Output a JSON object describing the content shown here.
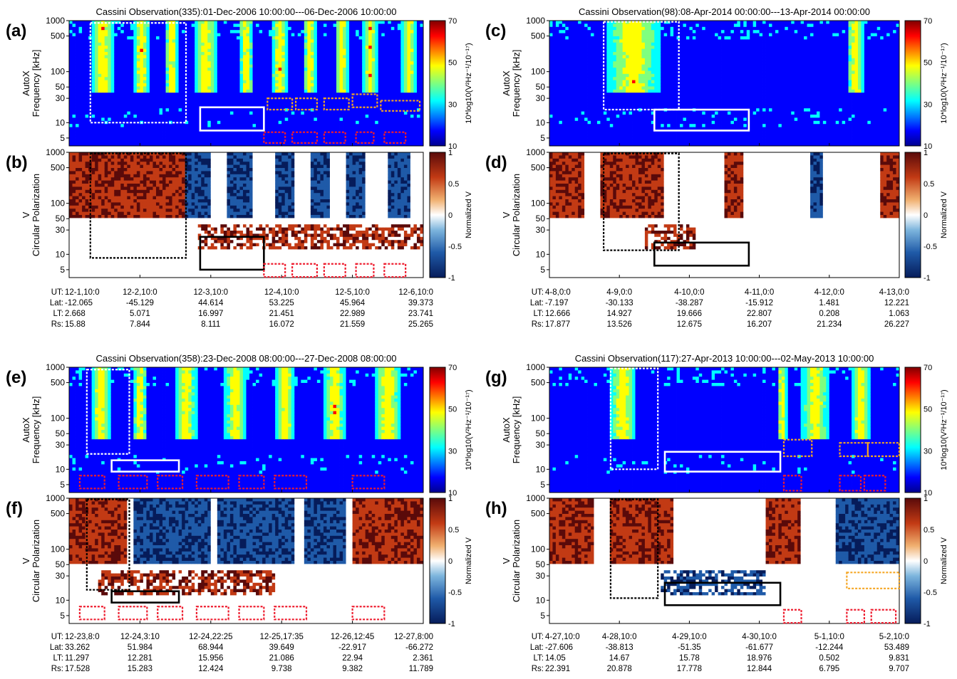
{
  "figure": {
    "panels": [
      {
        "id": "a_b",
        "title": "Cassini Observation(335):01-Dec-2006 10:00:00---06-Dec-2006 10:00:00",
        "spec_label": "(a)",
        "pol_label": "(b)",
        "spec_ylabel": [
          "AutoX",
          "Frequency [kHz]"
        ],
        "pol_ylabel": [
          "V",
          "Circular Polarization"
        ],
        "eph_labels": [
          "UT:",
          "Lat:",
          "LT:",
          "Rs:"
        ],
        "eph": [
          [
            "12-1,10:0",
            "-12.065",
            "2.668",
            "15.88"
          ],
          [
            "12-2,10:0",
            "-45.129",
            "5.071",
            "7.844"
          ],
          [
            "12-3,10:0",
            "44.614",
            "16.997",
            "8.111"
          ],
          [
            "12-4,10:0",
            "53.225",
            "21.451",
            "16.072"
          ],
          [
            "12-5,10:0",
            "45.964",
            "22.989",
            "21.559"
          ],
          [
            "12-6,10:0",
            "39.373",
            "23.741",
            "25.265"
          ]
        ]
      },
      {
        "id": "e_f",
        "title": "Cassini Observation(358):23-Dec-2008 08:00:00---27-Dec-2008 08:00:00",
        "spec_label": "(e)",
        "pol_label": "(f)",
        "spec_ylabel": [
          "AutoX",
          "Frequency [kHz]"
        ],
        "pol_ylabel": [
          "V",
          "Circular Polarization"
        ],
        "eph_labels": [
          "UT:",
          "Lat:",
          "LT:",
          "Rs:"
        ],
        "eph": [
          [
            "12-23,8:0",
            "33.262",
            "11.297",
            "17.528"
          ],
          [
            "12-24,3:10",
            "51.984",
            "12.281",
            "15.283"
          ],
          [
            "12-24,22:25",
            "68.944",
            "15.956",
            "12.424"
          ],
          [
            "12-25,17:35",
            "39.649",
            "21.086",
            "9.738"
          ],
          [
            "12-26,12:45",
            "-22.917",
            "22.94",
            "9.382"
          ],
          [
            "12-27,8:00",
            "-66.272",
            "2.361",
            "11.789"
          ]
        ]
      },
      {
        "id": "c_d",
        "title": "Cassini Observation(98):08-Apr-2014 00:00:00---13-Apr-2014 00:00:00",
        "spec_label": "(c)",
        "pol_label": "(d)",
        "spec_ylabel": [
          "AutoX",
          "Frequency [kHz]"
        ],
        "pol_ylabel": [
          "V",
          "Circular Polarization"
        ],
        "eph_labels": [
          "UT:",
          "Lat:",
          "LT:",
          "Rs:"
        ],
        "eph": [
          [
            "4-8,0:0",
            "-7.197",
            "12.666",
            "17.877"
          ],
          [
            "4-9,0:0",
            "-30.133",
            "14.927",
            "13.526"
          ],
          [
            "4-10,0:0",
            "-38.287",
            "19.666",
            "12.675"
          ],
          [
            "4-11,0:0",
            "-15.912",
            "22.807",
            "16.207"
          ],
          [
            "4-12,0:0",
            "1.481",
            "0.208",
            "21.234"
          ],
          [
            "4-13,0:0",
            "12.221",
            "1.063",
            "26.227"
          ]
        ]
      },
      {
        "id": "g_h",
        "title": "Cassini Observation(117):27-Apr-2013 10:00:00---02-May-2013 10:00:00",
        "spec_label": "(g)",
        "pol_label": "(h)",
        "spec_ylabel": [
          "AutoX",
          "Frequency [kHz]"
        ],
        "pol_ylabel": [
          "V",
          "Circular Polarization"
        ],
        "eph_labels": [
          "UT:",
          "Lat:",
          "LT:",
          "Rs:"
        ],
        "eph": [
          [
            "4-27,10:0",
            "-27.606",
            "14.05",
            "22.391"
          ],
          [
            "4-28,10:0",
            "-38.813",
            "14.67",
            "20.878"
          ],
          [
            "4-29,10:0",
            "-51.35",
            "15.78",
            "17.778"
          ],
          [
            "4-30,10:0",
            "-61.677",
            "18.976",
            "12.844"
          ],
          [
            "5-1,10:0",
            "-12.244",
            "0.502",
            "6.795"
          ],
          [
            "5-2,10:0",
            "53.489",
            "9.831",
            "9.707"
          ]
        ]
      }
    ],
    "colorbar_spec": {
      "ticks": [
        70,
        50,
        30,
        10
      ],
      "label": "10*log10(V²Hz⁻¹/10⁻¹⁷)"
    },
    "colorbar_pol": {
      "ticks": [
        "1",
        "0.5",
        "0",
        "-0.5",
        "-1"
      ],
      "label": "Normalized V"
    },
    "box_colors": {
      "white": "#ffffff",
      "black": "#000000",
      "red": "#ee1c2e",
      "orange": "#f5a623"
    }
  },
  "chart_data": [
    {
      "type": "heatmap",
      "panel": "(a)",
      "quantity": "AutoX",
      "ylabel": "Frequency [kHz]",
      "yscale": "log",
      "ylim": [
        3.5,
        1000
      ],
      "yticks": [
        5,
        10,
        30,
        50,
        100,
        500,
        1000
      ],
      "x_ticks": [
        "12-1,10:0",
        "12-2,10:0",
        "12-3,10:0",
        "12-4,10:0",
        "12-5,10:0",
        "12-6,10:0"
      ],
      "clim": [
        5,
        70
      ],
      "colormap": "jet"
    },
    {
      "type": "heatmap",
      "panel": "(b)",
      "quantity": "V",
      "ylabel": "Circular Polarization",
      "yscale": "log",
      "ylim": [
        3.5,
        1000
      ],
      "yticks": [
        5,
        10,
        30,
        50,
        100,
        500,
        1000
      ],
      "clim": [
        -1,
        1
      ],
      "colormap": "blue-white-red"
    },
    {
      "type": "heatmap",
      "panel": "(e)",
      "quantity": "AutoX",
      "ylabel": "Frequency [kHz]",
      "yscale": "log",
      "ylim": [
        3.5,
        1000
      ],
      "yticks": [
        5,
        10,
        30,
        50,
        100,
        500,
        1000
      ],
      "x_ticks": [
        "12-23,8:0",
        "12-24,3:10",
        "12-24,22:25",
        "12-25,17:35",
        "12-26,12:45",
        "12-27,8:00"
      ],
      "clim": [
        5,
        70
      ],
      "colormap": "jet"
    },
    {
      "type": "heatmap",
      "panel": "(f)",
      "quantity": "V",
      "ylabel": "Circular Polarization",
      "yscale": "log",
      "ylim": [
        3.5,
        1000
      ],
      "yticks": [
        5,
        10,
        30,
        50,
        100,
        500,
        1000
      ],
      "clim": [
        -1,
        1
      ],
      "colormap": "blue-white-red"
    },
    {
      "type": "heatmap",
      "panel": "(c)",
      "quantity": "AutoX",
      "ylabel": "Frequency [kHz]",
      "yscale": "log",
      "ylim": [
        3.5,
        1000
      ],
      "yticks": [
        5,
        10,
        30,
        50,
        100,
        500,
        1000
      ],
      "x_ticks": [
        "4-8,0:0",
        "4-9,0:0",
        "4-10,0:0",
        "4-11,0:0",
        "4-12,0:0",
        "4-13,0:0"
      ],
      "clim": [
        5,
        70
      ],
      "colormap": "jet"
    },
    {
      "type": "heatmap",
      "panel": "(d)",
      "quantity": "V",
      "ylabel": "Circular Polarization",
      "yscale": "log",
      "ylim": [
        3.5,
        1000
      ],
      "yticks": [
        5,
        10,
        30,
        50,
        100,
        500,
        1000
      ],
      "clim": [
        -1,
        1
      ],
      "colormap": "blue-white-red"
    },
    {
      "type": "heatmap",
      "panel": "(g)",
      "quantity": "AutoX",
      "ylabel": "Frequency [kHz]",
      "yscale": "log",
      "ylim": [
        3.5,
        1000
      ],
      "yticks": [
        5,
        10,
        30,
        50,
        100,
        500,
        1000
      ],
      "x_ticks": [
        "4-27,10:0",
        "4-28,10:0",
        "4-29,10:0",
        "4-30,10:0",
        "5-1,10:0",
        "5-2,10:0"
      ],
      "clim": [
        5,
        70
      ],
      "colormap": "jet"
    },
    {
      "type": "heatmap",
      "panel": "(h)",
      "quantity": "V",
      "ylabel": "Circular Polarization",
      "yscale": "log",
      "ylim": [
        3.5,
        1000
      ],
      "yticks": [
        5,
        10,
        30,
        50,
        100,
        500,
        1000
      ],
      "clim": [
        -1,
        1
      ],
      "colormap": "blue-white-red"
    }
  ]
}
